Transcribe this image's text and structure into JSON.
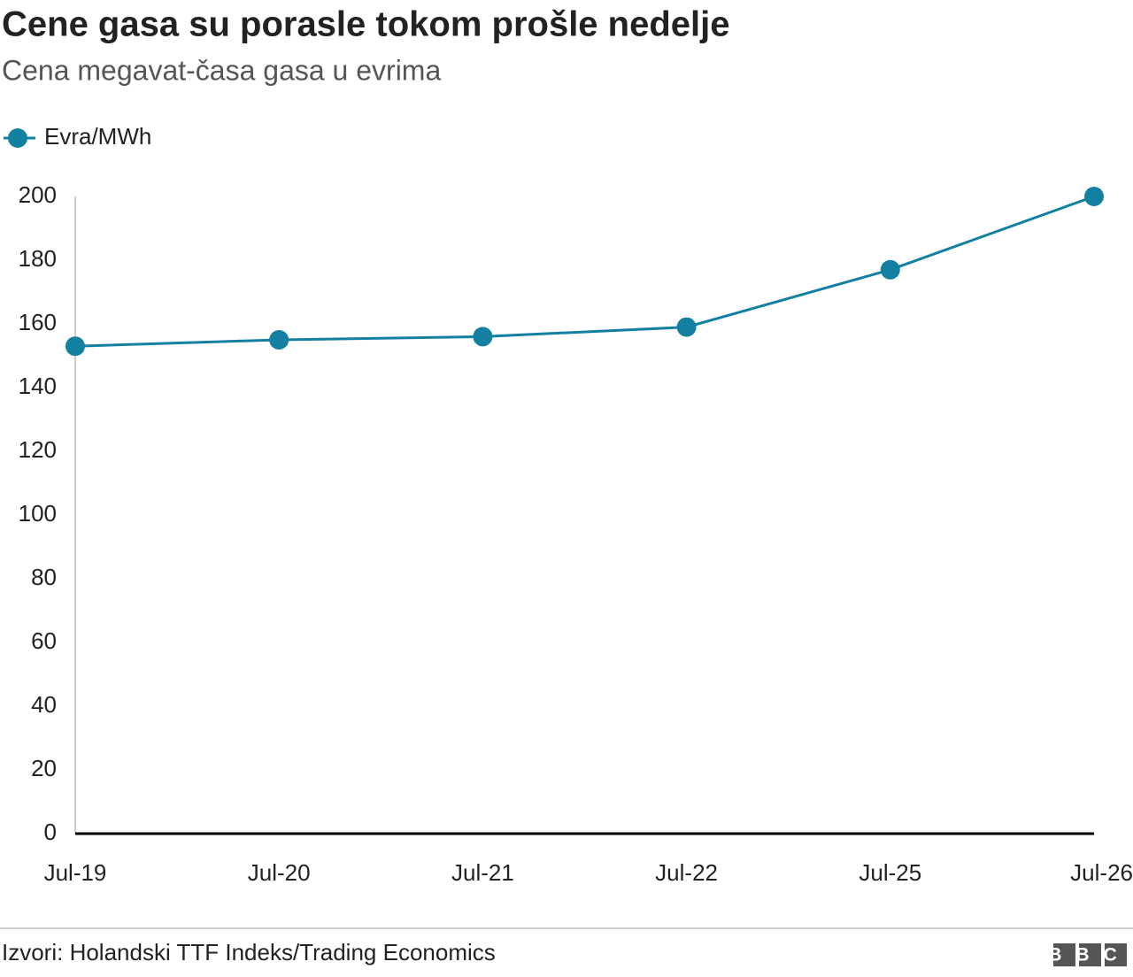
{
  "chart_data": {
    "type": "line",
    "title": "Cene gasa su porasle tokom prošle nedelje",
    "subtitle": "Cena megavat-časa gasa u evrima",
    "categories": [
      "Jul-19",
      "Jul-20",
      "Jul-21",
      "Jul-22",
      "Jul-25",
      "Jul-26"
    ],
    "series": [
      {
        "name": "Evra/MWh",
        "color": "#1380a1",
        "values": [
          153,
          155,
          156,
          159,
          177,
          200
        ]
      }
    ],
    "ylim": [
      0,
      200
    ],
    "yticks": [
      0,
      20,
      40,
      60,
      80,
      100,
      120,
      140,
      160,
      180,
      200
    ],
    "grid": false,
    "legend": "top-left",
    "source": "Izvori: Holandski TTF Indeks/Trading Economics",
    "logo": "BBC"
  }
}
